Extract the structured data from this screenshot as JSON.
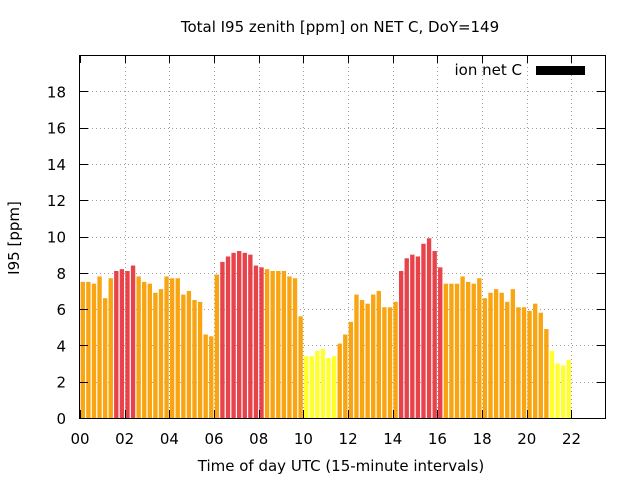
{
  "chart_data": {
    "type": "bar",
    "title": "Total I95 zenith [ppm] on NET C, DoY=149",
    "xlabel": "Time of day UTC (15-minute intervals)",
    "ylabel": "I95 [ppm]",
    "ylim": [
      0,
      20
    ],
    "xlim": [
      0,
      23.5
    ],
    "xticks": [
      "00",
      "02",
      "04",
      "06",
      "08",
      "10",
      "12",
      "14",
      "16",
      "18",
      "20",
      "22"
    ],
    "xtick_values": [
      0,
      2,
      4,
      6,
      8,
      10,
      12,
      14,
      16,
      18,
      20,
      22
    ],
    "yticks": [
      0,
      2,
      4,
      6,
      8,
      10,
      12,
      14,
      16,
      18
    ],
    "grid": true,
    "legend": {
      "position": "top-right",
      "label": "ion net C",
      "color": "#000000"
    },
    "colors": {
      "high": "#e8424a",
      "mid": "#f9a411",
      "low": "#ffff2b"
    },
    "bar_interval_hours": 0.25,
    "values": [
      7.5,
      7.5,
      7.4,
      7.8,
      6.6,
      7.7,
      8.1,
      8.2,
      8.1,
      8.4,
      7.8,
      7.5,
      7.4,
      6.9,
      7.1,
      7.8,
      7.7,
      7.7,
      6.8,
      7.0,
      6.5,
      6.4,
      4.6,
      4.5,
      7.9,
      8.6,
      8.9,
      9.1,
      9.2,
      9.1,
      9.0,
      8.4,
      8.3,
      8.2,
      8.1,
      8.1,
      8.1,
      7.8,
      7.7,
      5.6,
      3.4,
      3.4,
      3.7,
      3.8,
      3.3,
      3.4,
      4.1,
      4.6,
      5.3,
      6.8,
      6.5,
      6.3,
      6.8,
      7.0,
      6.1,
      6.1,
      6.4,
      8.1,
      8.8,
      9.0,
      8.9,
      9.6,
      9.9,
      9.2,
      8.3,
      7.4,
      7.4,
      7.4,
      7.8,
      7.5,
      7.4,
      7.7,
      6.6,
      6.9,
      7.1,
      6.9,
      6.4,
      7.1,
      6.1,
      6.1,
      5.9,
      6.3,
      5.8,
      4.9,
      3.7,
      3.0,
      2.9,
      3.2
    ],
    "value_colors": [
      "mid",
      "mid",
      "mid",
      "mid",
      "mid",
      "mid",
      "high",
      "high",
      "high",
      "high",
      "mid",
      "mid",
      "mid",
      "mid",
      "mid",
      "mid",
      "mid",
      "mid",
      "mid",
      "mid",
      "mid",
      "mid",
      "mid",
      "mid",
      "mid",
      "high",
      "high",
      "high",
      "high",
      "high",
      "high",
      "high",
      "high",
      "mid",
      "mid",
      "mid",
      "mid",
      "mid",
      "mid",
      "mid",
      "low",
      "low",
      "low",
      "low",
      "low",
      "low",
      "mid",
      "mid",
      "mid",
      "mid",
      "mid",
      "mid",
      "mid",
      "mid",
      "mid",
      "mid",
      "mid",
      "high",
      "high",
      "high",
      "high",
      "high",
      "high",
      "high",
      "high",
      "mid",
      "mid",
      "mid",
      "mid",
      "mid",
      "mid",
      "mid",
      "mid",
      "mid",
      "mid",
      "mid",
      "mid",
      "mid",
      "mid",
      "mid",
      "mid",
      "mid",
      "mid",
      "mid",
      "low",
      "low",
      "low",
      "low"
    ]
  }
}
